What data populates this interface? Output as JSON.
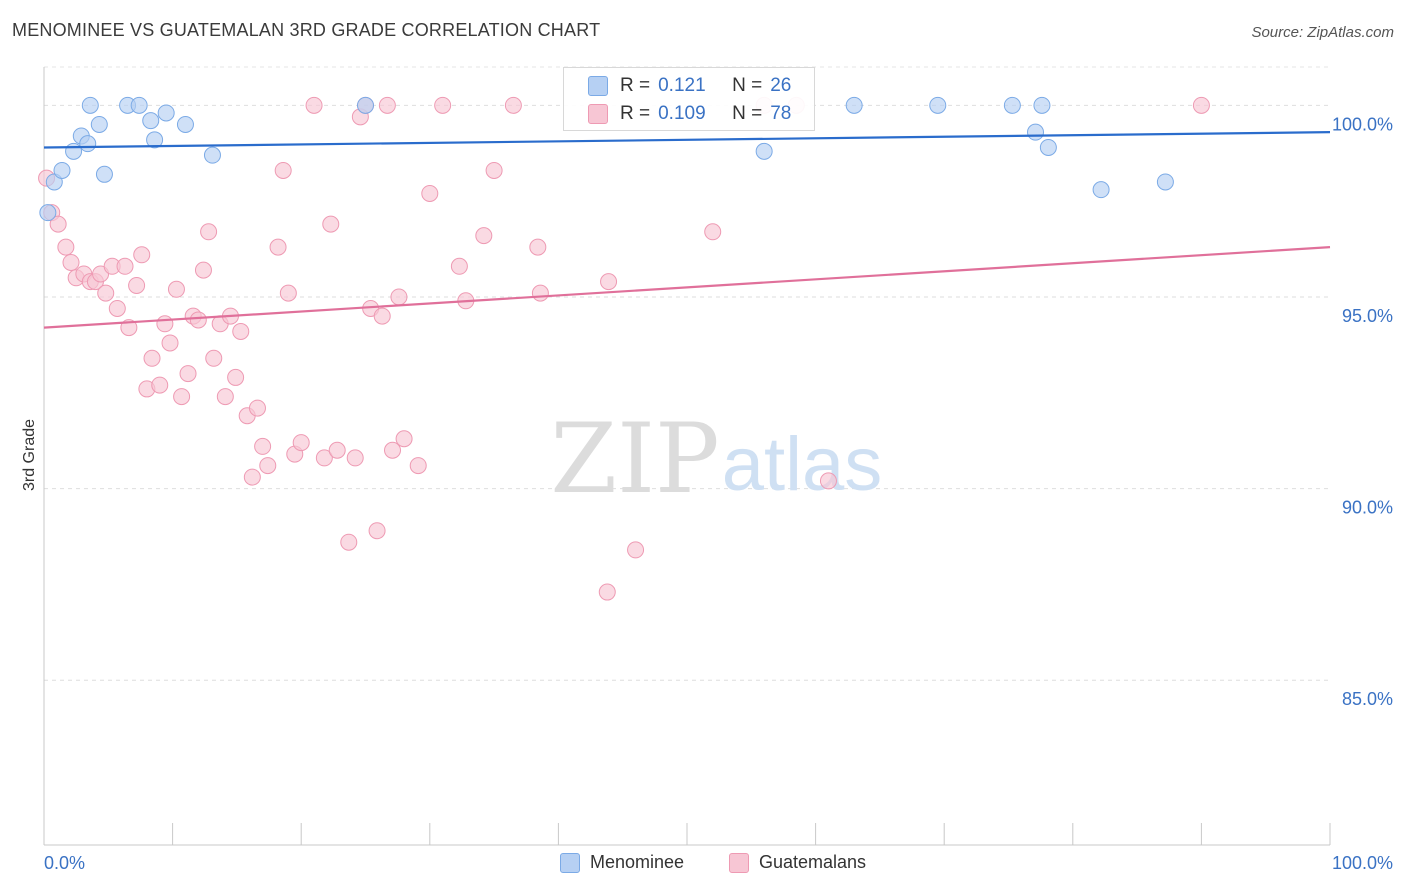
{
  "title": "MENOMINEE VS GUATEMALAN 3RD GRADE CORRELATION CHART",
  "source": "Source: ZipAtlas.com",
  "watermark": {
    "zip": "ZIP",
    "atlas": "atlas"
  },
  "colors": {
    "menominee": "#7baae6",
    "menominee_fill": "#b6d0f3",
    "menominee_line": "#2a6ccc",
    "guatemalans": "#ee9ab3",
    "guatemalans_fill": "#f7c6d4",
    "guatemalans_line": "#e0709a",
    "tick_label": "#3a72c4"
  },
  "correlation": [
    {
      "r_label": "R =",
      "r_value": "0.121",
      "n_label": "N =",
      "n_value": "26"
    },
    {
      "r_label": "R =",
      "r_value": "0.109",
      "n_label": "N =",
      "n_value": "78"
    }
  ],
  "legend": [
    "Menominee",
    "Guatemalans"
  ],
  "chart_data": {
    "type": "scatter",
    "title": "MENOMINEE VS GUATEMALAN 3RD GRADE CORRELATION CHART",
    "xlabel": "",
    "ylabel": "3rd Grade",
    "xlim": [
      0,
      100
    ],
    "ylim": [
      80.7,
      101
    ],
    "x_tick_labels": [
      "0.0%",
      "100.0%"
    ],
    "y_ticks": [
      85,
      90,
      95,
      100
    ],
    "y_tick_labels": [
      "85.0%",
      "90.0%",
      "95.0%",
      "100.0%"
    ],
    "grid": true,
    "series": [
      {
        "name": "Menominee",
        "trend": {
          "x": [
            0,
            100
          ],
          "y": [
            98.9,
            99.3
          ]
        },
        "points": [
          [
            0.3,
            97.2
          ],
          [
            0.8,
            98.0
          ],
          [
            1.4,
            98.3
          ],
          [
            2.3,
            98.8
          ],
          [
            2.9,
            99.2
          ],
          [
            3.4,
            99.0
          ],
          [
            3.6,
            100.0
          ],
          [
            4.3,
            99.5
          ],
          [
            4.7,
            98.2
          ],
          [
            6.5,
            100.0
          ],
          [
            7.4,
            100.0
          ],
          [
            8.3,
            99.6
          ],
          [
            8.6,
            99.1
          ],
          [
            9.5,
            99.8
          ],
          [
            11.0,
            99.5
          ],
          [
            13.1,
            98.7
          ],
          [
            25.0,
            100.0
          ],
          [
            56.0,
            98.8
          ],
          [
            63.0,
            100.0
          ],
          [
            69.5,
            100.0
          ],
          [
            75.3,
            100.0
          ],
          [
            77.6,
            100.0
          ],
          [
            77.1,
            99.3
          ],
          [
            78.1,
            98.9
          ],
          [
            82.2,
            97.8
          ],
          [
            87.2,
            98.0
          ]
        ]
      },
      {
        "name": "Guatemalans",
        "trend": {
          "x": [
            0,
            100
          ],
          "y": [
            94.2,
            96.3
          ]
        },
        "points": [
          [
            0.2,
            98.1
          ],
          [
            0.6,
            97.2
          ],
          [
            1.1,
            96.9
          ],
          [
            1.7,
            96.3
          ],
          [
            2.1,
            95.9
          ],
          [
            2.5,
            95.5
          ],
          [
            3.1,
            95.6
          ],
          [
            3.6,
            95.4
          ],
          [
            4.0,
            95.4
          ],
          [
            4.4,
            95.6
          ],
          [
            4.8,
            95.1
          ],
          [
            5.3,
            95.8
          ],
          [
            5.7,
            94.7
          ],
          [
            6.3,
            95.8
          ],
          [
            6.6,
            94.2
          ],
          [
            7.2,
            95.3
          ],
          [
            7.6,
            96.1
          ],
          [
            8.0,
            92.6
          ],
          [
            8.4,
            93.4
          ],
          [
            9.0,
            92.7
          ],
          [
            9.4,
            94.3
          ],
          [
            9.8,
            93.8
          ],
          [
            10.3,
            95.2
          ],
          [
            10.7,
            92.4
          ],
          [
            11.2,
            93.0
          ],
          [
            11.6,
            94.5
          ],
          [
            12.0,
            94.4
          ],
          [
            12.4,
            95.7
          ],
          [
            12.8,
            96.7
          ],
          [
            13.2,
            93.4
          ],
          [
            13.7,
            94.3
          ],
          [
            14.1,
            92.4
          ],
          [
            14.5,
            94.5
          ],
          [
            14.9,
            92.9
          ],
          [
            15.3,
            94.1
          ],
          [
            15.8,
            91.9
          ],
          [
            16.2,
            90.3
          ],
          [
            16.6,
            92.1
          ],
          [
            17.0,
            91.1
          ],
          [
            17.4,
            90.6
          ],
          [
            18.2,
            96.3
          ],
          [
            18.6,
            98.3
          ],
          [
            19.0,
            95.1
          ],
          [
            19.5,
            90.9
          ],
          [
            20.0,
            91.2
          ],
          [
            21.0,
            100.0
          ],
          [
            21.8,
            90.8
          ],
          [
            22.3,
            96.9
          ],
          [
            22.8,
            91.0
          ],
          [
            23.7,
            88.6
          ],
          [
            24.2,
            90.8
          ],
          [
            24.6,
            99.7
          ],
          [
            25.0,
            100.0
          ],
          [
            25.4,
            94.7
          ],
          [
            25.9,
            88.9
          ],
          [
            26.3,
            94.5
          ],
          [
            26.7,
            100.0
          ],
          [
            27.1,
            91.0
          ],
          [
            27.6,
            95.0
          ],
          [
            28.0,
            91.3
          ],
          [
            29.1,
            90.6
          ],
          [
            30.0,
            97.7
          ],
          [
            31.0,
            100.0
          ],
          [
            32.3,
            95.8
          ],
          [
            32.8,
            94.9
          ],
          [
            34.2,
            96.6
          ],
          [
            35.0,
            98.3
          ],
          [
            36.5,
            100.0
          ],
          [
            38.4,
            96.3
          ],
          [
            38.6,
            95.1
          ],
          [
            43.8,
            87.3
          ],
          [
            43.9,
            95.4
          ],
          [
            46.0,
            88.4
          ],
          [
            52.0,
            96.7
          ],
          [
            56.0,
            100.0
          ],
          [
            58.5,
            100.0
          ],
          [
            61.0,
            90.2
          ],
          [
            90.0,
            100.0
          ]
        ]
      }
    ]
  }
}
